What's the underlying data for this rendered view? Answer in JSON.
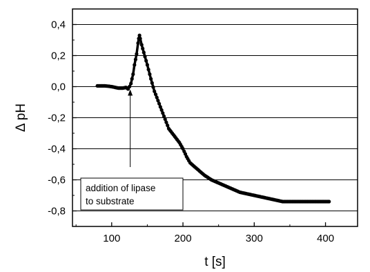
{
  "chart_data": {
    "type": "line",
    "xlabel": "t  [s]",
    "ylabel": "Δ pH",
    "xlim": [
      45,
      445
    ],
    "ylim": [
      -0.9,
      0.5
    ],
    "x_ticks": [
      100,
      200,
      300,
      400
    ],
    "x_tick_labels": [
      "100",
      "200",
      "300",
      "400"
    ],
    "y_ticks": [
      0.4,
      0.2,
      0.0,
      -0.2,
      -0.4,
      -0.6,
      -0.8
    ],
    "y_tick_labels": [
      "0,4",
      "0,2",
      "0,0",
      "-0,2",
      "-0,4",
      "-0,6",
      "-0,8"
    ],
    "grid": "horizontal",
    "marker": "filled-circle",
    "color": "#000000",
    "series": [
      {
        "x": [
          80,
          85,
          90,
          95,
          100,
          105,
          110,
          115,
          120,
          123,
          125,
          127,
          130,
          132,
          135,
          137,
          138,
          139,
          140,
          142,
          145,
          150,
          155,
          160,
          165,
          170,
          175,
          180,
          185,
          190,
          195,
          200,
          205,
          210,
          220,
          230,
          240,
          250,
          260,
          270,
          280,
          290,
          300,
          310,
          320,
          330,
          340,
          350,
          360,
          370,
          380,
          390,
          400,
          405
        ],
        "y": [
          0.005,
          0.005,
          0.005,
          0.003,
          0.0,
          -0.005,
          -0.01,
          -0.01,
          -0.005,
          -0.015,
          0.0,
          0.02,
          0.08,
          0.14,
          0.21,
          0.28,
          0.31,
          0.33,
          0.31,
          0.27,
          0.22,
          0.14,
          0.05,
          -0.03,
          -0.09,
          -0.15,
          -0.21,
          -0.27,
          -0.3,
          -0.33,
          -0.36,
          -0.4,
          -0.45,
          -0.49,
          -0.53,
          -0.57,
          -0.6,
          -0.62,
          -0.64,
          -0.66,
          -0.68,
          -0.69,
          -0.7,
          -0.71,
          -0.72,
          -0.73,
          -0.74,
          -0.74,
          -0.74,
          -0.74,
          -0.74,
          -0.74,
          -0.74,
          -0.74
        ]
      }
    ],
    "annotations": [
      {
        "text_lines": [
          "addition of lipase",
          "to substrate"
        ],
        "arrow_x": 126,
        "arrow_from_y": -0.5,
        "arrow_to_y": 0.0
      }
    ]
  }
}
